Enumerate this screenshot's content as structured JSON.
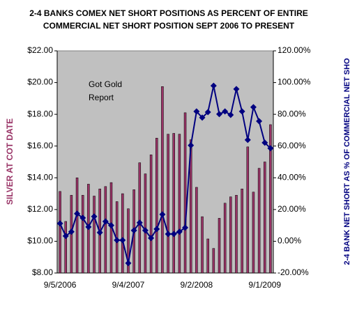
{
  "chart_data": {
    "type": "bar",
    "title": [
      "2-4 BANKS COMEX NET SHORT POSITIONS AS PERCENT OF ENTIRE",
      "COMMERCIAL NET SHORT POSITION SEPT 2006 TO PRESENT"
    ],
    "annotation": [
      "Got Gold",
      "Report"
    ],
    "y_label": "SILVER AT COT DATE",
    "y2_label": "2-4 BANK NET SHORT AS % OF COMMERCIAL NET SHO",
    "categories": [
      "9/5/2006",
      null,
      null,
      null,
      null,
      null,
      null,
      null,
      null,
      null,
      null,
      null,
      "9/4/2007",
      null,
      null,
      null,
      null,
      null,
      null,
      null,
      null,
      null,
      null,
      null,
      "9/2/2008",
      null,
      null,
      null,
      null,
      null,
      null,
      null,
      null,
      null,
      null,
      null,
      "9/1/2009",
      null
    ],
    "series": [
      {
        "type": "bar",
        "axis": "y",
        "color": "#993366",
        "values": [
          13.14,
          11.25,
          12.9,
          14.0,
          12.9,
          13.6,
          12.85,
          13.3,
          13.45,
          13.7,
          12.5,
          13.0,
          12.05,
          13.25,
          14.95,
          14.25,
          15.45,
          16.5,
          19.75,
          16.75,
          16.8,
          16.75,
          18.1,
          16.4,
          13.4,
          11.55,
          10.15,
          9.55,
          11.45,
          12.4,
          12.8,
          12.9,
          13.3,
          15.95,
          13.1,
          14.6,
          15.0,
          17.35
        ]
      },
      {
        "type": "line",
        "axis": "y2",
        "color": "#000080",
        "values": [
          11.2,
          3.3,
          6,
          17.4,
          14.7,
          9,
          15.6,
          5.5,
          12.5,
          10,
          0.7,
          0.7,
          -13.8,
          6.8,
          11.7,
          6.8,
          2,
          7.7,
          16.9,
          4.6,
          4.6,
          6,
          8.6,
          60.4,
          81.8,
          77.9,
          81.4,
          98,
          80.1,
          81.8,
          79.6,
          95.9,
          81.8,
          63.9,
          84.5,
          75.7,
          62.1,
          58.6
        ]
      }
    ],
    "ylim": [
      8,
      22
    ],
    "yticks": [
      {
        "value": 8,
        "label": "$8.00"
      },
      {
        "value": 10,
        "label": "$10.00"
      },
      {
        "value": 12,
        "label": "$12.00"
      },
      {
        "value": 14,
        "label": "$14.00"
      },
      {
        "value": 16,
        "label": "$16.00"
      },
      {
        "value": 18,
        "label": "$18.00"
      },
      {
        "value": 20,
        "label": "$20.00"
      },
      {
        "value": 22,
        "label": "$22.00"
      }
    ],
    "y2lim": [
      -20,
      120
    ],
    "y2ticks": [
      {
        "value": -20,
        "label": "-20.00%"
      },
      {
        "value": 0,
        "label": "0.00%"
      },
      {
        "value": 20,
        "label": "20.00%"
      },
      {
        "value": 40,
        "label": "40.00%"
      },
      {
        "value": 60,
        "label": "60.00%"
      },
      {
        "value": 80,
        "label": "80.00%"
      },
      {
        "value": 100,
        "label": "100.00%"
      },
      {
        "value": 120,
        "label": "120.00%"
      }
    ],
    "plot_background": "#c0c0c0"
  }
}
